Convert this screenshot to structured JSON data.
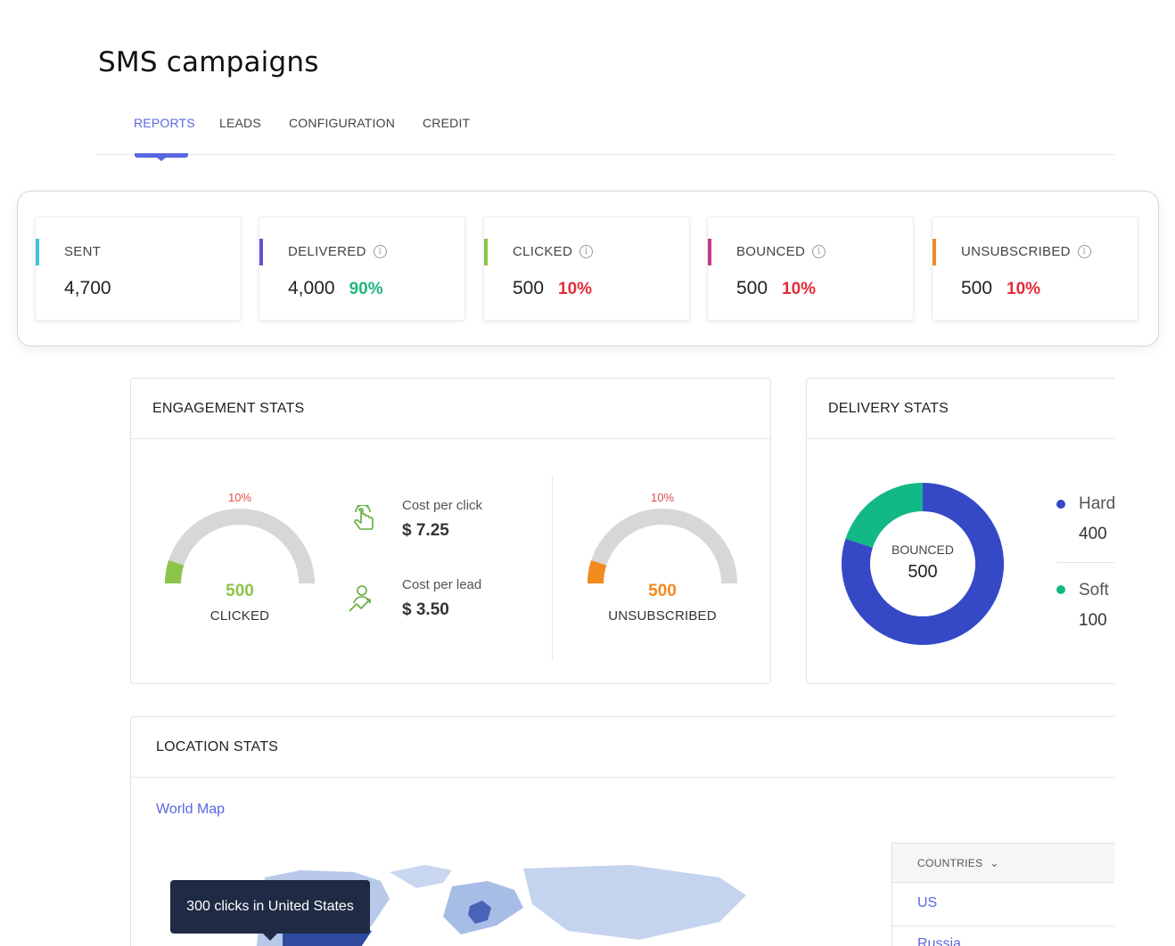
{
  "page": {
    "title": "SMS campaigns"
  },
  "tabs": [
    {
      "label": "REPORTS",
      "active": true
    },
    {
      "label": "LEADS"
    },
    {
      "label": "CONFIGURATION"
    },
    {
      "label": "CREDIT"
    }
  ],
  "kpis": [
    {
      "label": "SENT",
      "value": "4,700",
      "pct": "",
      "bar_color": "#3ac4e0",
      "pct_color": ""
    },
    {
      "label": "DELIVERED",
      "value": "4,000",
      "pct": "90%",
      "bar_color": "#6a4fd4",
      "pct_color": "#1fb57a"
    },
    {
      "label": "CLICKED",
      "value": "500",
      "pct": "10%",
      "bar_color": "#8cc44a",
      "pct_color": "#e52b3a"
    },
    {
      "label": "BOUNCED",
      "value": "500",
      "pct": "10%",
      "bar_color": "#c63a8a",
      "pct_color": "#e52b3a"
    },
    {
      "label": "UNSUBSCRIBED",
      "value": "500",
      "pct": "10%",
      "bar_color": "#f28a1e",
      "pct_color": "#e52b3a"
    }
  ],
  "engagement": {
    "title": "ENGAGEMENT STATS",
    "clicked_gauge": {
      "pct": "10%",
      "fraction": 0.1,
      "value": "500",
      "label": "CLICKED",
      "color": "#8cc44a"
    },
    "unsub_gauge": {
      "pct": "10%",
      "fraction": 0.1,
      "value": "500",
      "label": "UNSUBSCRIBED",
      "color": "#f28a1e"
    },
    "cost_per_click": {
      "label": "Cost per click",
      "value": "$ 7.25",
      "icon": "tap-hand-icon"
    },
    "cost_per_lead": {
      "label": "Cost per lead",
      "value": "$ 3.50",
      "icon": "growth-user-icon"
    }
  },
  "delivery": {
    "title": "DELIVERY STATS",
    "donut": {
      "center_label": "BOUNCED",
      "center_value": "500"
    },
    "legend": [
      {
        "label": "Hard",
        "value": "400",
        "color": "#3548c6"
      },
      {
        "label": "Soft I",
        "value": "100",
        "color": "#12b886"
      }
    ]
  },
  "location": {
    "title": "LOCATION STATS",
    "link": "World Map",
    "tooltip": "300 clicks in United States",
    "countries": {
      "header": "COUNTRIES",
      "rows": [
        "US",
        "Russia"
      ]
    }
  },
  "chart_data": {
    "type": "pie",
    "labels": [
      "Hard",
      "Soft I"
    ],
    "values": [
      400,
      100
    ]
  }
}
